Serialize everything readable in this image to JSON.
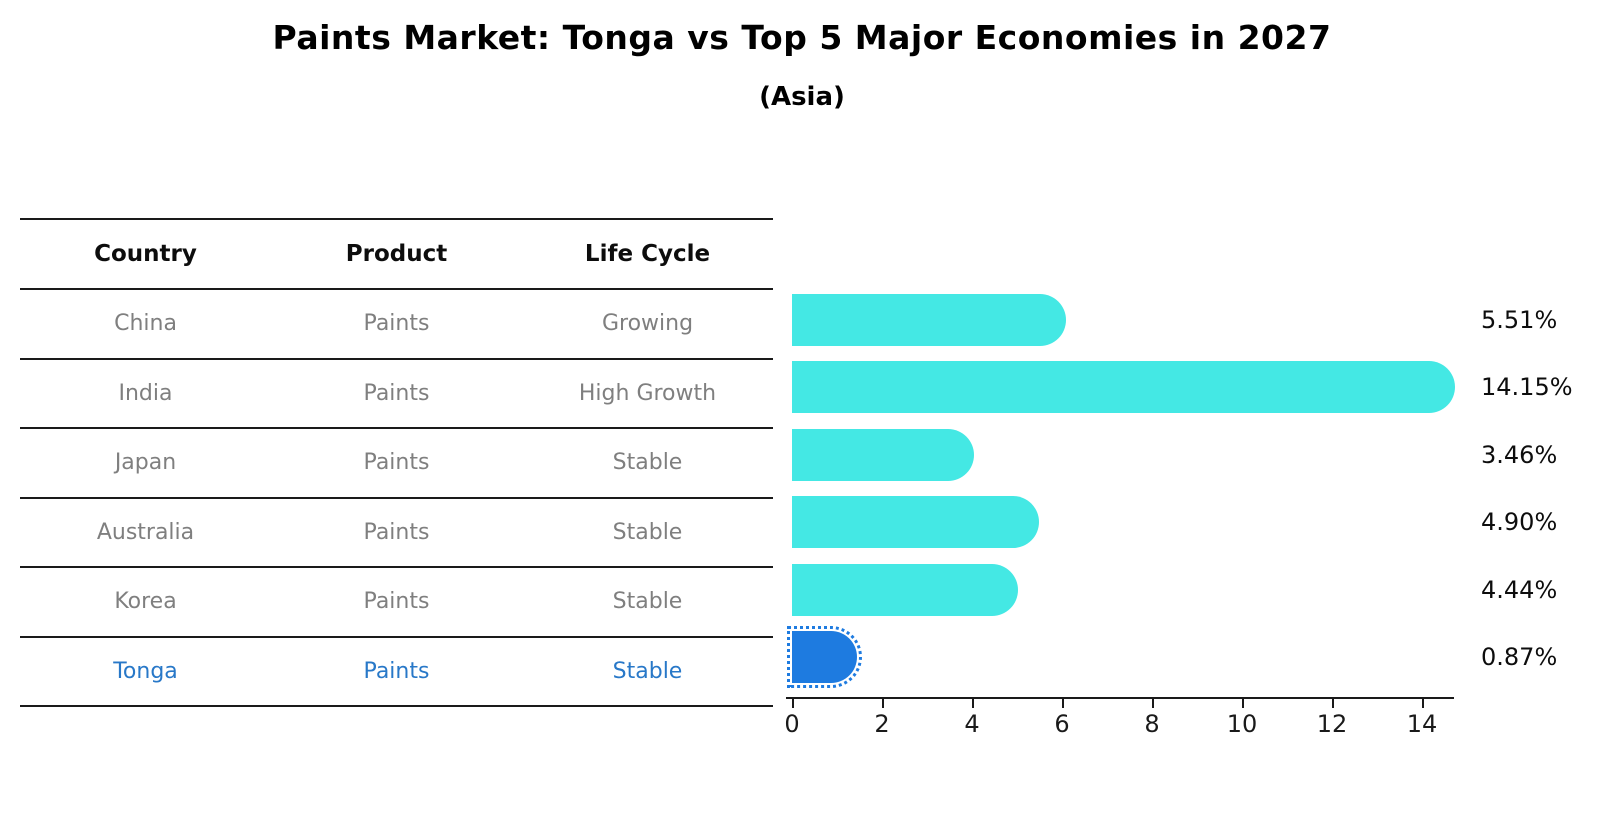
{
  "title": "Paints Market: Tonga vs Top 5 Major Economies in 2027",
  "subtitle": "(Asia)",
  "table": {
    "headers": [
      "Country",
      "Product",
      "Life Cycle"
    ],
    "rows": [
      {
        "country": "China",
        "product": "Paints",
        "life_cycle": "Growing",
        "highlight": false
      },
      {
        "country": "India",
        "product": "Paints",
        "life_cycle": "High Growth",
        "highlight": false
      },
      {
        "country": "Japan",
        "product": "Paints",
        "life_cycle": "Stable",
        "highlight": false
      },
      {
        "country": "Australia",
        "product": "Paints",
        "life_cycle": "Stable",
        "highlight": false
      },
      {
        "country": "Korea",
        "product": "Paints",
        "life_cycle": "Stable",
        "highlight": false
      },
      {
        "country": "Tonga",
        "product": "Paints",
        "life_cycle": "Stable",
        "highlight": true
      }
    ]
  },
  "chart_data": {
    "type": "bar",
    "orientation": "horizontal",
    "title": "Paints Market: Tonga vs Top 5 Major Economies in 2027",
    "subtitle": "(Asia)",
    "categories": [
      "China",
      "India",
      "Japan",
      "Australia",
      "Korea",
      "Tonga"
    ],
    "values": [
      5.51,
      14.15,
      3.46,
      4.9,
      4.44,
      0.87
    ],
    "value_labels": [
      "5.51%",
      "14.15%",
      "3.46%",
      "4.90%",
      "4.44%",
      "0.87%"
    ],
    "xticks": [
      0,
      2,
      4,
      6,
      8,
      10,
      12,
      14
    ],
    "xlim": [
      0,
      14.7
    ],
    "xlabel": "",
    "ylabel": "",
    "grid": false,
    "legend": "none",
    "bar_color": "#44E8E4",
    "highlight_color": "#1E7BE0",
    "highlight_index": 5,
    "highlight_text_color": "#2878C8"
  }
}
